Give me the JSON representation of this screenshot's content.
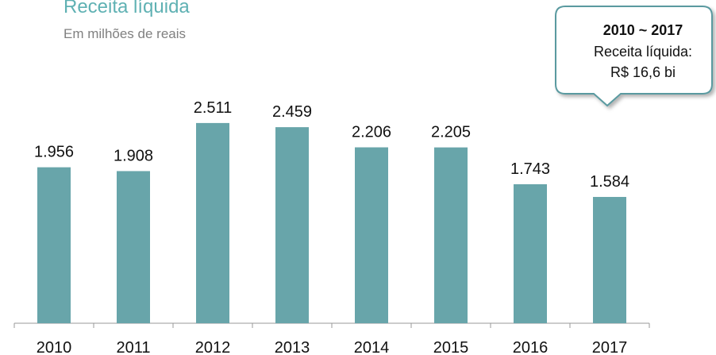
{
  "chart_data": {
    "type": "bar",
    "title": "Receita líquida",
    "subtitle": "Em milhões de reais",
    "categories": [
      "2010",
      "2011",
      "2012",
      "2013",
      "2014",
      "2015",
      "2016",
      "2017"
    ],
    "values": [
      1956,
      1908,
      2511,
      2459,
      2206,
      2205,
      1743,
      1584
    ],
    "value_labels": [
      "1.956",
      "1.908",
      "2.511",
      "2.459",
      "2.206",
      "2.205",
      "1.743",
      "1.584"
    ],
    "color": "#68a5aa",
    "annotation": {
      "title": "2010 ~ 2017",
      "lines": [
        "Receita líquida:",
        "R$ 16,6 bi"
      ]
    }
  }
}
